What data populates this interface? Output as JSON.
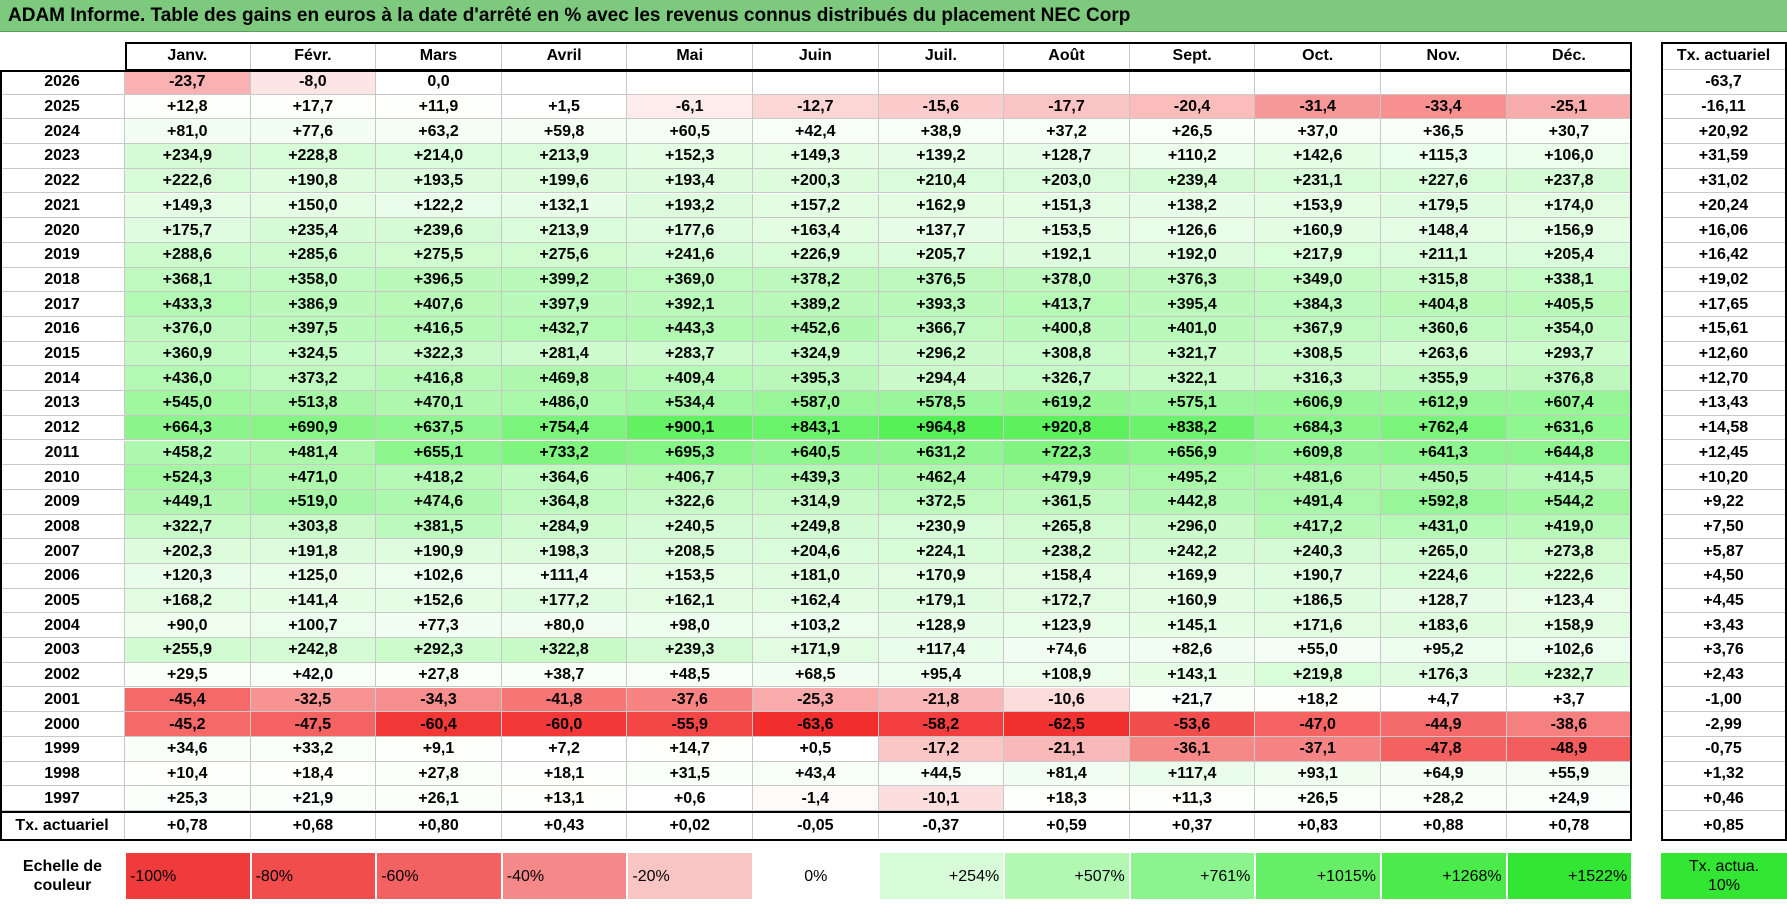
{
  "title": "ADAM Informe. Table des gains en euros à la date d'arrêté en % avec les revenus connus distribués du placement NEC Corp",
  "table": {
    "months": [
      "Janv.",
      "Févr.",
      "Mars",
      "Avril",
      "Mai",
      "Juin",
      "Juil.",
      "Août",
      "Sept.",
      "Oct.",
      "Nov.",
      "Déc."
    ],
    "rate_header": "Tx. actuariel",
    "rows": [
      {
        "year": "2026",
        "values": [
          "-23,7",
          "-8,0",
          "0,0"
        ],
        "rate": "-63,7"
      },
      {
        "year": "2025",
        "values": [
          "+12,8",
          "+17,7",
          "+11,9",
          "+1,5",
          "-6,1",
          "-12,7",
          "-15,6",
          "-17,7",
          "-20,4",
          "-31,4",
          "-33,4",
          "-25,1"
        ],
        "rate": "-16,11"
      },
      {
        "year": "2024",
        "values": [
          "+81,0",
          "+77,6",
          "+63,2",
          "+59,8",
          "+60,5",
          "+42,4",
          "+38,9",
          "+37,2",
          "+26,5",
          "+37,0",
          "+36,5",
          "+30,7"
        ],
        "rate": "+20,92"
      },
      {
        "year": "2023",
        "values": [
          "+234,9",
          "+228,8",
          "+214,0",
          "+213,9",
          "+152,3",
          "+149,3",
          "+139,2",
          "+128,7",
          "+110,2",
          "+142,6",
          "+115,3",
          "+106,0"
        ],
        "rate": "+31,59"
      },
      {
        "year": "2022",
        "values": [
          "+222,6",
          "+190,8",
          "+193,5",
          "+199,6",
          "+193,4",
          "+200,3",
          "+210,4",
          "+203,0",
          "+239,4",
          "+231,1",
          "+227,6",
          "+237,8"
        ],
        "rate": "+31,02"
      },
      {
        "year": "2021",
        "values": [
          "+149,3",
          "+150,0",
          "+122,2",
          "+132,1",
          "+193,2",
          "+157,2",
          "+162,9",
          "+151,3",
          "+138,2",
          "+153,9",
          "+179,5",
          "+174,0"
        ],
        "rate": "+20,24"
      },
      {
        "year": "2020",
        "values": [
          "+175,7",
          "+235,4",
          "+239,6",
          "+213,9",
          "+177,6",
          "+163,4",
          "+137,7",
          "+153,5",
          "+126,6",
          "+160,9",
          "+148,4",
          "+156,9"
        ],
        "rate": "+16,06"
      },
      {
        "year": "2019",
        "values": [
          "+288,6",
          "+285,6",
          "+275,5",
          "+275,6",
          "+241,6",
          "+226,9",
          "+205,7",
          "+192,1",
          "+192,0",
          "+217,9",
          "+211,1",
          "+205,4"
        ],
        "rate": "+16,42"
      },
      {
        "year": "2018",
        "values": [
          "+368,1",
          "+358,0",
          "+396,5",
          "+399,2",
          "+369,0",
          "+378,2",
          "+376,5",
          "+378,0",
          "+376,3",
          "+349,0",
          "+315,8",
          "+338,1"
        ],
        "rate": "+19,02"
      },
      {
        "year": "2017",
        "values": [
          "+433,3",
          "+386,9",
          "+407,6",
          "+397,9",
          "+392,1",
          "+389,2",
          "+393,3",
          "+413,7",
          "+395,4",
          "+384,3",
          "+404,8",
          "+405,5"
        ],
        "rate": "+17,65"
      },
      {
        "year": "2016",
        "values": [
          "+376,0",
          "+397,5",
          "+416,5",
          "+432,7",
          "+443,3",
          "+452,6",
          "+366,7",
          "+400,8",
          "+401,0",
          "+367,9",
          "+360,6",
          "+354,0"
        ],
        "rate": "+15,61"
      },
      {
        "year": "2015",
        "values": [
          "+360,9",
          "+324,5",
          "+322,3",
          "+281,4",
          "+283,7",
          "+324,9",
          "+296,2",
          "+308,8",
          "+321,7",
          "+308,5",
          "+263,6",
          "+293,7"
        ],
        "rate": "+12,60"
      },
      {
        "year": "2014",
        "values": [
          "+436,0",
          "+373,2",
          "+416,8",
          "+469,8",
          "+409,4",
          "+395,3",
          "+294,4",
          "+326,7",
          "+322,1",
          "+316,3",
          "+355,9",
          "+376,8"
        ],
        "rate": "+12,70"
      },
      {
        "year": "2013",
        "values": [
          "+545,0",
          "+513,8",
          "+470,1",
          "+486,0",
          "+534,4",
          "+587,0",
          "+578,5",
          "+619,2",
          "+575,1",
          "+606,9",
          "+612,9",
          "+607,4"
        ],
        "rate": "+13,43"
      },
      {
        "year": "2012",
        "values": [
          "+664,3",
          "+690,9",
          "+637,5",
          "+754,4",
          "+900,1",
          "+843,1",
          "+964,8",
          "+920,8",
          "+838,2",
          "+684,3",
          "+762,4",
          "+631,6"
        ],
        "rate": "+14,58"
      },
      {
        "year": "2011",
        "values": [
          "+458,2",
          "+481,4",
          "+655,1",
          "+733,2",
          "+695,3",
          "+640,5",
          "+631,2",
          "+722,3",
          "+656,9",
          "+609,8",
          "+641,3",
          "+644,8"
        ],
        "rate": "+12,45"
      },
      {
        "year": "2010",
        "values": [
          "+524,3",
          "+471,0",
          "+418,2",
          "+364,6",
          "+406,7",
          "+439,3",
          "+462,4",
          "+479,9",
          "+495,2",
          "+481,6",
          "+450,5",
          "+414,5"
        ],
        "rate": "+10,20"
      },
      {
        "year": "2009",
        "values": [
          "+449,1",
          "+519,0",
          "+474,6",
          "+364,8",
          "+322,6",
          "+314,9",
          "+372,5",
          "+361,5",
          "+442,8",
          "+491,4",
          "+592,8",
          "+544,2"
        ],
        "rate": "+9,22"
      },
      {
        "year": "2008",
        "values": [
          "+322,7",
          "+303,8",
          "+381,5",
          "+284,9",
          "+240,5",
          "+249,8",
          "+230,9",
          "+265,8",
          "+296,0",
          "+417,2",
          "+431,0",
          "+419,0"
        ],
        "rate": "+7,50"
      },
      {
        "year": "2007",
        "values": [
          "+202,3",
          "+191,8",
          "+190,9",
          "+198,3",
          "+208,5",
          "+204,6",
          "+224,1",
          "+238,2",
          "+242,2",
          "+240,3",
          "+265,0",
          "+273,8"
        ],
        "rate": "+5,87"
      },
      {
        "year": "2006",
        "values": [
          "+120,3",
          "+125,0",
          "+102,6",
          "+111,4",
          "+153,5",
          "+181,0",
          "+170,9",
          "+158,4",
          "+169,9",
          "+190,7",
          "+224,6",
          "+222,6"
        ],
        "rate": "+4,50"
      },
      {
        "year": "2005",
        "values": [
          "+168,2",
          "+141,4",
          "+152,6",
          "+177,2",
          "+162,1",
          "+162,4",
          "+179,1",
          "+172,7",
          "+160,9",
          "+186,5",
          "+128,7",
          "+123,4"
        ],
        "rate": "+4,45"
      },
      {
        "year": "2004",
        "values": [
          "+90,0",
          "+100,7",
          "+77,3",
          "+80,0",
          "+98,0",
          "+103,2",
          "+128,9",
          "+123,9",
          "+145,1",
          "+171,6",
          "+183,6",
          "+158,9"
        ],
        "rate": "+3,43"
      },
      {
        "year": "2003",
        "values": [
          "+255,9",
          "+242,8",
          "+292,3",
          "+322,8",
          "+239,3",
          "+171,9",
          "+117,4",
          "+74,6",
          "+82,6",
          "+55,0",
          "+95,2",
          "+102,6"
        ],
        "rate": "+3,76"
      },
      {
        "year": "2002",
        "values": [
          "+29,5",
          "+42,0",
          "+27,8",
          "+38,7",
          "+48,5",
          "+68,5",
          "+95,4",
          "+108,9",
          "+143,1",
          "+219,8",
          "+176,3",
          "+232,7"
        ],
        "rate": "+2,43"
      },
      {
        "year": "2001",
        "values": [
          "-45,4",
          "-32,5",
          "-34,3",
          "-41,8",
          "-37,6",
          "-25,3",
          "-21,8",
          "-10,6",
          "+21,7",
          "+18,2",
          "+4,7",
          "+3,7"
        ],
        "rate": "-1,00"
      },
      {
        "year": "2000",
        "values": [
          "-45,2",
          "-47,5",
          "-60,4",
          "-60,0",
          "-55,9",
          "-63,6",
          "-58,2",
          "-62,5",
          "-53,6",
          "-47,0",
          "-44,9",
          "-38,6"
        ],
        "rate": "-2,99"
      },
      {
        "year": "1999",
        "values": [
          "+34,6",
          "+33,2",
          "+9,1",
          "+7,2",
          "+14,7",
          "+0,5",
          "-17,2",
          "-21,1",
          "-36,1",
          "-37,1",
          "-47,8",
          "-48,9"
        ],
        "rate": "-0,75"
      },
      {
        "year": "1998",
        "values": [
          "+10,4",
          "+18,4",
          "+27,8",
          "+18,1",
          "+31,5",
          "+43,4",
          "+44,5",
          "+81,4",
          "+117,4",
          "+93,1",
          "+64,9",
          "+55,9"
        ],
        "rate": "+1,32"
      },
      {
        "year": "1997",
        "values": [
          "+25,3",
          "+21,9",
          "+26,1",
          "+13,1",
          "+0,6",
          "-1,4",
          "-10,1",
          "+18,3",
          "+11,3",
          "+26,5",
          "+28,2",
          "+24,9"
        ],
        "rate": "+0,46"
      }
    ],
    "footer": {
      "label": "Tx. actuariel",
      "values": [
        "+0,78",
        "+0,68",
        "+0,80",
        "+0,43",
        "+0,02",
        "-0,05",
        "-0,37",
        "+0,59",
        "+0,37",
        "+0,83",
        "+0,88",
        "+0,78"
      ],
      "rate": "+0,85"
    }
  },
  "legend": {
    "label": "Echelle de couleur",
    "steps": [
      "-100%",
      "-80%",
      "-60%",
      "-40%",
      "-20%",
      "0%",
      "+254%",
      "+507%",
      "+761%",
      "+1015%",
      "+1268%",
      "+1522%"
    ],
    "rate": "Tx. actua. 10%"
  }
}
